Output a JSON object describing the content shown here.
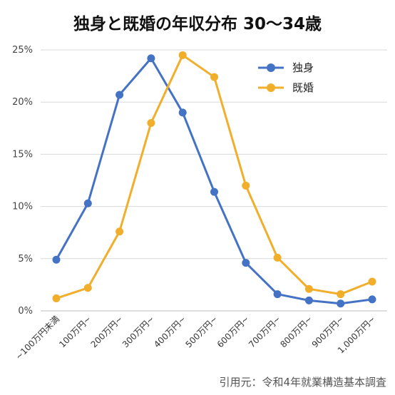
{
  "chart_data": {
    "type": "line",
    "title": "独身と既婚の年収分布  30〜34歳",
    "categories": [
      "~100万円未満",
      "100万円~",
      "200万円~",
      "300万円~",
      "400万円~",
      "500万円~",
      "600万円~",
      "700万円~",
      "800万円~",
      "900万円~",
      "1,000万円~"
    ],
    "series": [
      {
        "name": "独身",
        "color": "#4472C4",
        "values": [
          4.9,
          10.3,
          20.7,
          24.2,
          19.0,
          11.4,
          4.6,
          1.6,
          1.0,
          0.7,
          1.1
        ]
      },
      {
        "name": "既婚",
        "color": "#F0AE2B",
        "values": [
          1.2,
          2.2,
          7.6,
          18.0,
          24.5,
          22.4,
          12.0,
          5.1,
          2.1,
          1.6,
          2.8
        ]
      }
    ],
    "ylim": [
      0,
      25
    ],
    "yticks": [
      "0%",
      "5%",
      "10%",
      "15%",
      "20%",
      "25%"
    ],
    "xlabel": "",
    "ylabel": "",
    "grid": true,
    "legend_position": "top-right"
  },
  "source_note": "引用元：令和4年就業構造基本調査"
}
